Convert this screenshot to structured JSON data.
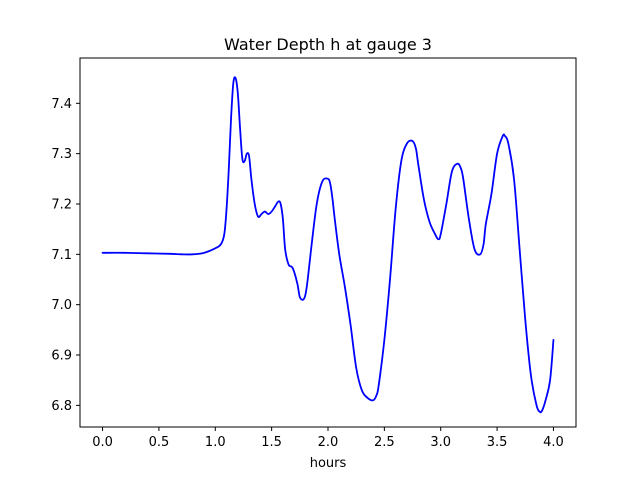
{
  "chart_data": {
    "type": "line",
    "title": "Water Depth h at gauge 3",
    "xlabel": "hours",
    "ylabel": "",
    "xlim": [
      -0.2,
      4.2
    ],
    "ylim": [
      6.757,
      7.49
    ],
    "xticks": [
      0.0,
      0.5,
      1.0,
      1.5,
      2.0,
      2.5,
      3.0,
      3.5,
      4.0
    ],
    "xtick_labels": [
      "0.0",
      "0.5",
      "1.0",
      "1.5",
      "2.0",
      "2.5",
      "3.0",
      "3.5",
      "4.0"
    ],
    "yticks": [
      6.8,
      6.9,
      7.0,
      7.1,
      7.2,
      7.3,
      7.4
    ],
    "ytick_labels": [
      "6.8",
      "6.9",
      "7.0",
      "7.1",
      "7.2",
      "7.3",
      "7.4"
    ],
    "grid": false,
    "series": [
      {
        "color": "#0000ff",
        "x": [
          0.0,
          0.2,
          0.4,
          0.6,
          0.7,
          0.8,
          0.9,
          1.0,
          1.05,
          1.08,
          1.1,
          1.12,
          1.14,
          1.16,
          1.18,
          1.2,
          1.22,
          1.24,
          1.26,
          1.28,
          1.3,
          1.32,
          1.35,
          1.38,
          1.41,
          1.44,
          1.47,
          1.5,
          1.53,
          1.56,
          1.58,
          1.6,
          1.62,
          1.65,
          1.68,
          1.7,
          1.73,
          1.75,
          1.78,
          1.8,
          1.82,
          1.85,
          1.9,
          1.95,
          2.0,
          2.02,
          2.04,
          2.06,
          2.1,
          2.15,
          2.2,
          2.25,
          2.3,
          2.35,
          2.4,
          2.43,
          2.45,
          2.5,
          2.55,
          2.6,
          2.65,
          2.7,
          2.75,
          2.78,
          2.8,
          2.85,
          2.9,
          2.95,
          2.98,
          3.0,
          3.05,
          3.1,
          3.15,
          3.18,
          3.2,
          3.25,
          3.3,
          3.35,
          3.38,
          3.4,
          3.45,
          3.5,
          3.55,
          3.57,
          3.6,
          3.65,
          3.7,
          3.75,
          3.8,
          3.85,
          3.88,
          3.9,
          3.93,
          3.97,
          4.0
        ],
        "y": [
          7.103,
          7.103,
          7.102,
          7.101,
          7.1,
          7.1,
          7.103,
          7.112,
          7.12,
          7.14,
          7.19,
          7.27,
          7.37,
          7.44,
          7.45,
          7.42,
          7.35,
          7.29,
          7.285,
          7.3,
          7.295,
          7.25,
          7.2,
          7.175,
          7.18,
          7.185,
          7.18,
          7.185,
          7.195,
          7.205,
          7.2,
          7.17,
          7.11,
          7.08,
          7.075,
          7.065,
          7.04,
          7.015,
          7.01,
          7.02,
          7.05,
          7.11,
          7.2,
          7.245,
          7.25,
          7.24,
          7.21,
          7.17,
          7.1,
          7.035,
          6.96,
          6.875,
          6.83,
          6.815,
          6.81,
          6.82,
          6.84,
          6.93,
          7.05,
          7.19,
          7.285,
          7.32,
          7.325,
          7.31,
          7.28,
          7.21,
          7.165,
          7.14,
          7.13,
          7.14,
          7.2,
          7.265,
          7.28,
          7.27,
          7.25,
          7.17,
          7.11,
          7.1,
          7.12,
          7.16,
          7.22,
          7.3,
          7.335,
          7.335,
          7.32,
          7.25,
          7.11,
          6.97,
          6.86,
          6.8,
          6.787,
          6.79,
          6.81,
          6.85,
          6.93
        ]
      }
    ]
  }
}
